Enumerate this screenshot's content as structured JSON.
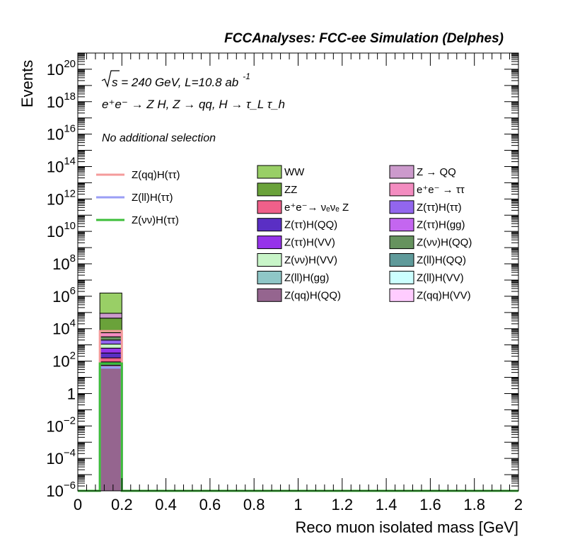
{
  "chart_data": {
    "type": "bar",
    "title": "FCCAnalyses: FCC-ee Simulation (Delphes)",
    "xlabel": "Reco muon isolated mass [GeV]",
    "ylabel": "Events",
    "xlim": [
      0,
      2
    ],
    "ylim_log10": [
      -6,
      21
    ],
    "log_y": true,
    "x_ticks": [
      "0",
      "0.2",
      "0.4",
      "0.6",
      "0.8",
      "1",
      "1.2",
      "1.4",
      "1.6",
      "1.8",
      "2"
    ],
    "y_ticks": [
      {
        "base": "10",
        "exp": "20"
      },
      {
        "base": "10",
        "exp": "18"
      },
      {
        "base": "10",
        "exp": "16"
      },
      {
        "base": "10",
        "exp": "14"
      },
      {
        "base": "10",
        "exp": "12"
      },
      {
        "base": "10",
        "exp": "10"
      },
      {
        "base": "10",
        "exp": "8"
      },
      {
        "base": "10",
        "exp": "6"
      },
      {
        "base": "10",
        "exp": "4"
      },
      {
        "base": "10",
        "exp": "2"
      },
      {
        "base": "1",
        "exp": ""
      },
      {
        "base": "10",
        "exp": "−2"
      },
      {
        "base": "10",
        "exp": "−4"
      },
      {
        "base": "10",
        "exp": "−6"
      }
    ],
    "annotations": {
      "energy_prefix": "s = 240 GeV, L=10.8 ab",
      "energy_exp": "-1",
      "process": "e⁺e⁻ → Z H, Z → qq, H → τ_L τ_h",
      "selection": "No additional selection"
    },
    "bin": {
      "x_low": 0.1,
      "x_high": 0.2
    },
    "stack_tops_log10": [
      {
        "name": "Z(qq)H(QQ)",
        "color": "#95658f",
        "top": 1.75
      },
      {
        "name": "Z(ll)H(gg)",
        "color": "#8fc7c7",
        "top": 1.95
      },
      {
        "name": "e⁺e⁻→ νₑνₑ Z",
        "color": "#f0608a",
        "top": 2.2
      },
      {
        "name": "Z(ττ)H(QQ)",
        "color": "#5a2fc4",
        "top": 2.5
      },
      {
        "name": "Z(ττ)H(VV)",
        "color": "#9633ea",
        "top": 2.8
      },
      {
        "name": "Z(νν)H(VV)",
        "color": "#c8f5c8",
        "top": 3.05
      },
      {
        "name": "Z(ττ)H(ττ)",
        "color": "#9266ee",
        "top": 3.3
      },
      {
        "name": "Z(νν)H(QQ)",
        "color": "#66935e",
        "top": 3.5
      },
      {
        "name": "e⁺e⁻ → ττ",
        "color": "#f38cc0",
        "top": 3.75
      },
      {
        "name": "ZZ",
        "color": "#6aa23a",
        "top": 4.65
      },
      {
        "name": "Z → QQ",
        "color": "#cc9acc",
        "top": 4.95
      },
      {
        "name": "WW",
        "color": "#99cf66",
        "top": 6.2
      }
    ],
    "signal_lines_log10": [
      {
        "name": "Z(qq)H(ττ)",
        "color": "#f49b9b",
        "value": 3.85
      },
      {
        "name": "Z(ll)H(ττ)",
        "color": "#9a9ef5",
        "value": 1.6
      },
      {
        "name": "Z(νν)H(ττ)",
        "color": "#3dbe3a",
        "value": 1.85
      }
    ],
    "legend_left": [
      {
        "label": "Z(qq)H(ττ)",
        "color": "#f49b9b"
      },
      {
        "label": "Z(ll)H(ττ)",
        "color": "#9a9ef5"
      },
      {
        "label": "Z(νν)H(ττ)",
        "color": "#3dbe3a"
      }
    ],
    "legend_col1": [
      {
        "label": "WW",
        "color": "#99cf66"
      },
      {
        "label": "ZZ",
        "color": "#6aa23a"
      },
      {
        "label": "e⁺e⁻→ νₑνₑ Z",
        "color": "#f0608a"
      },
      {
        "label": "Z(ττ)H(QQ)",
        "color": "#5a2fc4"
      },
      {
        "label": "Z(ττ)H(VV)",
        "color": "#9633ea"
      },
      {
        "label": "Z(νν)H(VV)",
        "color": "#c8f5c8"
      },
      {
        "label": "Z(ll)H(gg)",
        "color": "#8fc7c7"
      },
      {
        "label": "Z(qq)H(QQ)",
        "color": "#95658f"
      }
    ],
    "legend_col2": [
      {
        "label": "Z → QQ",
        "color": "#cc9acc"
      },
      {
        "label": "e⁺e⁻ → ττ",
        "color": "#f38cc0"
      },
      {
        "label": "Z(ττ)H(ττ)",
        "color": "#9266ee"
      },
      {
        "label": "Z(ττ)H(gg)",
        "color": "#c466f0"
      },
      {
        "label": "Z(νν)H(QQ)",
        "color": "#66935e"
      },
      {
        "label": "Z(ll)H(QQ)",
        "color": "#5f9a9a"
      },
      {
        "label": "Z(ll)H(VV)",
        "color": "#ccffff"
      },
      {
        "label": "Z(qq)H(VV)",
        "color": "#ffccff"
      }
    ]
  }
}
